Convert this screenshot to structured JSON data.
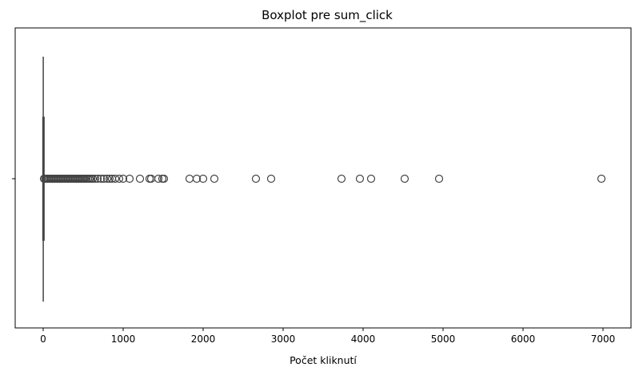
{
  "chart_data": {
    "type": "boxplot",
    "title": "Boxplot pre sum_click",
    "xlabel": "Počet kliknutí",
    "ylabel": "",
    "orientation": "horizontal",
    "xlim": [
      -350,
      7350
    ],
    "xticks": [
      0,
      1000,
      2000,
      3000,
      4000,
      5000,
      6000,
      7000
    ],
    "xtick_labels": [
      "0",
      "1000",
      "2000",
      "3000",
      "4000",
      "5000",
      "6000",
      "7000"
    ],
    "grid": false,
    "colors": {
      "box": "#444444",
      "outlier": "#444444"
    },
    "box": {
      "whisker_low": 1,
      "q1": 1,
      "median": 2,
      "q3": 3,
      "whisker_high": 6
    },
    "outliers": [
      10,
      25,
      40,
      55,
      70,
      85,
      100,
      115,
      130,
      145,
      160,
      175,
      190,
      205,
      220,
      235,
      250,
      265,
      280,
      295,
      310,
      325,
      340,
      355,
      370,
      385,
      400,
      415,
      430,
      445,
      460,
      475,
      490,
      505,
      520,
      540,
      560,
      580,
      600,
      620,
      650,
      680,
      720,
      760,
      800,
      830,
      860,
      900,
      950,
      1000,
      1080,
      1210,
      1330,
      1350,
      1440,
      1490,
      1510,
      1830,
      1920,
      2000,
      2140,
      2660,
      2850,
      3730,
      3960,
      4100,
      4520,
      4950,
      6980
    ]
  }
}
